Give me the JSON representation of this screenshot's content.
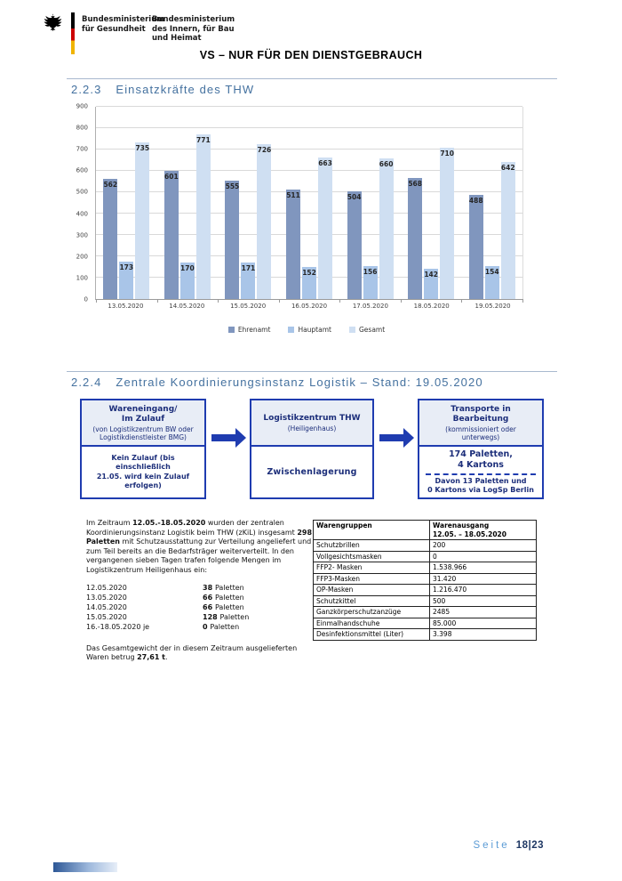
{
  "header": {
    "ministry1": "Bundesministerium\nfür Gesundheit",
    "ministry2": "Bundesministerium\ndes Innern, für Bau\nund Heimat",
    "classification": "VS – NUR FÜR DEN DIENSTGEBRAUCH"
  },
  "section_chart": {
    "number": "2.2.3",
    "title": "Einsatzkräfte des THW"
  },
  "chart_data": {
    "type": "bar",
    "title": "Einsatzkräfte des THW",
    "categories": [
      "13.05.2020",
      "14.05.2020",
      "15.05.2020",
      "16.05.2020",
      "17.05.2020",
      "18.05.2020",
      "19.05.2020"
    ],
    "series": [
      {
        "name": "Ehrenamt",
        "color": "#8096be",
        "values": [
          562,
          601,
          555,
          511,
          504,
          568,
          488
        ]
      },
      {
        "name": "Hauptamt",
        "color": "#a9c5e8",
        "values": [
          173,
          170,
          171,
          152,
          156,
          142,
          154
        ]
      },
      {
        "name": "Gesamt",
        "color": "#cfdff2",
        "values": [
          735,
          771,
          726,
          663,
          660,
          710,
          642
        ]
      }
    ],
    "ylim": [
      0,
      900
    ],
    "yticks": [
      0,
      100,
      200,
      300,
      400,
      500,
      600,
      700,
      800,
      900
    ],
    "grid": true,
    "legend_position": "bottom",
    "value_labels": "inside-end"
  },
  "section_logistics": {
    "number": "2.2.4",
    "title": "Zentrale Koordinierungsinstanz Logistik – Stand: 19.05.2020"
  },
  "flow": {
    "box1": {
      "title": "Wareneingang/\nIm Zulauf",
      "subtitle": "(von Logistikzentrum BW oder\nLogistikdienstleister BMG)",
      "body": "Kein Zulauf (bis einschließlich\n21.05. wird kein Zulauf\nerfolgen)"
    },
    "box2": {
      "title": "Logistikzentrum THW",
      "subtitle": "(Heiligenhaus)",
      "body": "Zwischenlagerung"
    },
    "box3": {
      "title": "Transporte in\nBearbeitung",
      "subtitle": "(kommissioniert oder\nunterwegs)",
      "body_main": "174 Paletten,\n4 Kartons",
      "body_sub": "Davon 13 Paletten und\n0 Kartons via LogSp Berlin"
    }
  },
  "logistics": {
    "intro": {
      "t1": "Im Zeitraum ",
      "b1": "12.05.-18.05.2020",
      "t2": " wurden der zentralen Koordinierungsinstanz Logistik beim THW (zKiL) insgesamt ",
      "b2": "298 Paletten",
      "t3": " mit Schutzausstattung zur Verteilung angeliefert und zum Teil bereits an die Bedarfsträger weiterverteilt. In den vergangenen sieben Tagen trafen folgende Mengen im Logistikzentrum Heiligenhaus ein:"
    },
    "deliveries": [
      {
        "date": "12.05.2020",
        "amount": "38",
        "unit": "Paletten"
      },
      {
        "date": "13.05.2020",
        "amount": "66",
        "unit": "Paletten"
      },
      {
        "date": "14.05.2020",
        "amount": "66",
        "unit": "Paletten"
      },
      {
        "date": "15.05.2020",
        "amount": "128",
        "unit": "Paletten"
      },
      {
        "date": "16.-18.05.2020 je",
        "amount": "0",
        "unit": "Paletten"
      }
    ],
    "weight": {
      "t1": "Das Gesamtgewicht der in diesem Zeitraum ausgelieferten Waren betrug ",
      "b1": "27,61 t",
      "t2": "."
    }
  },
  "logistics_table": {
    "col1_header": "Warengruppen",
    "col2_header": "Warenausgang\n12.05. – 18.05.2020",
    "rows": [
      [
        "Schutzbrillen",
        "200"
      ],
      [
        "Vollgesichtsmasken",
        "0"
      ],
      [
        "FFP2- Masken",
        "1.538.966"
      ],
      [
        "FFP3-Masken",
        "31.420"
      ],
      [
        "OP-Masken",
        "1.216.470"
      ],
      [
        "Schutzkittel",
        "500"
      ],
      [
        "Ganzkörperschutzanzüge",
        "2485"
      ],
      [
        "Einmalhandschuhe",
        "85.000"
      ],
      [
        "Desinfektionsmittel (Liter)",
        "3.398"
      ]
    ]
  },
  "footer": {
    "label": "Seite",
    "page": "18|23"
  },
  "colors": {
    "heading_blue": "#44719f",
    "box_border_blue": "#1f3cb0",
    "box_text_navy": "#1c2e7a",
    "footer_label_blue": "#5b9bd5",
    "footer_page_navy": "#1f3864",
    "flag_black": "#000000",
    "flag_red": "#cc0000",
    "flag_gold": "#f0b400"
  }
}
